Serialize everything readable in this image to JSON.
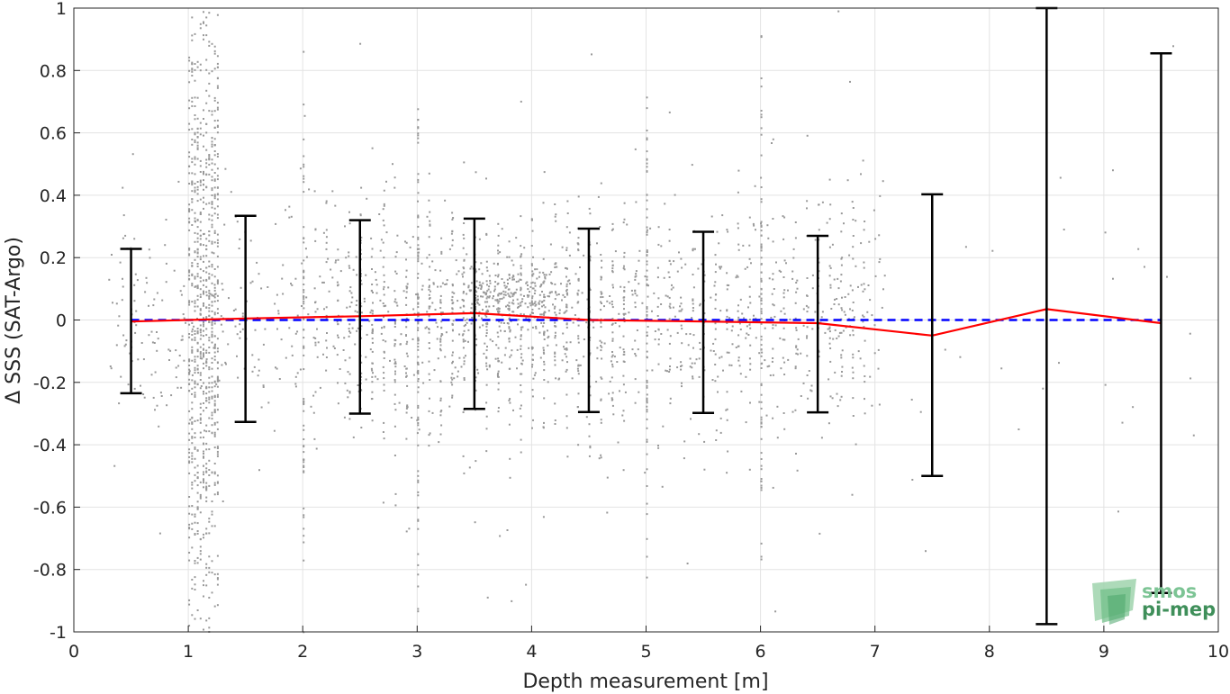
{
  "chart_data": {
    "type": "scatter",
    "title": "",
    "xlabel": "Depth measurement [m]",
    "ylabel": "Δ SSS (SAT-Argo)",
    "xlim": [
      0,
      10
    ],
    "ylim": [
      -1,
      1
    ],
    "x_ticks": [
      "0",
      "1",
      "2",
      "3",
      "4",
      "5",
      "6",
      "7",
      "8",
      "9",
      "10"
    ],
    "y_ticks": [
      "-1",
      "-0.8",
      "-0.6",
      "-0.4",
      "-0.2",
      "0",
      "0.2",
      "0.4",
      "0.6",
      "0.8",
      "1"
    ],
    "grid": true,
    "zero_line": {
      "y": 0,
      "color": "#0000ff",
      "style": "dashed"
    },
    "mean_line": {
      "color": "#ff0000",
      "x": [
        0.5,
        1.5,
        2.5,
        3.5,
        4.5,
        5.5,
        6.5,
        7.5,
        8.5,
        9.5
      ],
      "y": [
        -0.005,
        0.005,
        0.012,
        0.022,
        0.0,
        -0.005,
        -0.01,
        -0.05,
        0.035,
        -0.01
      ]
    },
    "error_bars": {
      "color": "#000000",
      "x": [
        0.5,
        1.5,
        2.5,
        3.5,
        4.5,
        5.5,
        6.5,
        7.5,
        8.5,
        9.5
      ],
      "upper": [
        0.228,
        0.334,
        0.32,
        0.325,
        0.293,
        0.283,
        0.27,
        0.403,
        1.0,
        0.855
      ],
      "lower": [
        -0.235,
        -0.327,
        -0.3,
        -0.285,
        -0.295,
        -0.298,
        -0.296,
        -0.5,
        -0.975,
        -0.875
      ]
    },
    "scatter_color": "#999999"
  },
  "logo": {
    "line1": "smos",
    "line2": "pi-mep"
  }
}
